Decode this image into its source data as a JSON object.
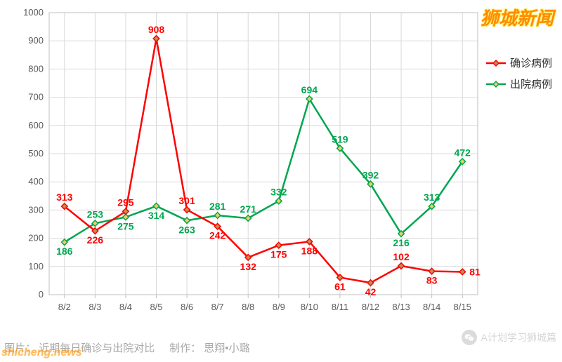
{
  "header_watermark": "狮城新闻",
  "footer": {
    "left_site": "shicheng.news",
    "label_prefix": "图片：",
    "label_text": "近期每日确诊与出院对比",
    "maker_prefix": "制作：",
    "maker_text": "思翔•小璐"
  },
  "wechat_watermark": "A计划学习狮城篇",
  "chart": {
    "type": "line",
    "background_color": "#ffffff",
    "plot_border_color": "#bfbfbf",
    "grid_color": "#d9d9d9",
    "axis_text_color": "#595959",
    "axis_fontsize": 13,
    "label_fontsize": 14,
    "line_width": 2.5,
    "marker_size": 6,
    "marker_style": "diamond",
    "ylim": [
      0,
      1000
    ],
    "ytick_step": 100,
    "x_categories": [
      "8/2",
      "8/3",
      "8/4",
      "8/5",
      "8/6",
      "8/7",
      "8/8",
      "8/9",
      "8/10",
      "8/11",
      "8/12",
      "8/13",
      "8/14",
      "8/15"
    ],
    "legend": {
      "position": "right",
      "fontsize": 15,
      "items": [
        {
          "key": "confirmed",
          "label": "确诊病例"
        },
        {
          "key": "discharged",
          "label": "出院病例"
        }
      ]
    },
    "series": {
      "confirmed": {
        "color": "#ff0000",
        "marker_fill": "#c09050",
        "values": [
          313,
          226,
          295,
          908,
          301,
          242,
          132,
          175,
          188,
          61,
          42,
          102,
          83,
          81
        ],
        "label_positions": [
          "above",
          "below",
          "above",
          "above",
          "above",
          "below",
          "below",
          "below",
          "below",
          "below",
          "below",
          "above",
          "below",
          "right"
        ]
      },
      "discharged": {
        "color": "#00a650",
        "marker_fill": "#e8d060",
        "values": [
          186,
          253,
          275,
          314,
          263,
          281,
          271,
          332,
          694,
          519,
          392,
          216,
          313,
          472
        ],
        "label_positions": [
          "below",
          "above",
          "below",
          "below",
          "below",
          "above",
          "above",
          "above",
          "above",
          "above",
          "above",
          "below",
          "above",
          "above"
        ]
      }
    }
  }
}
